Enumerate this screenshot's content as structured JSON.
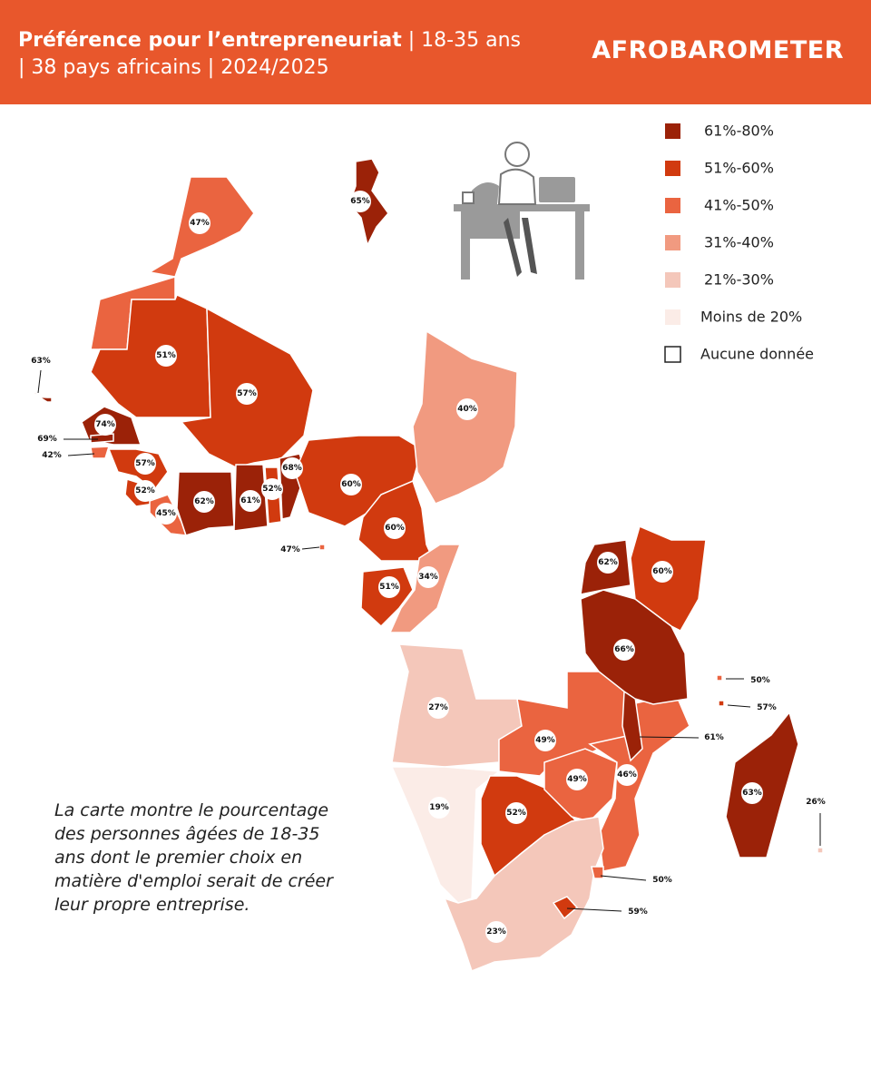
{
  "header": {
    "title_bold": "Préférence pour l’entrepreneuriat",
    "title_rest": " | 18-35 ans",
    "title_line_2": "| 38 pays africains | 2024/2025",
    "logo": "AFROBAROMETER",
    "color": "#e8572c"
  },
  "legend": {
    "items": [
      {
        "label": "61%-80%",
        "color": "#9b2208"
      },
      {
        "label": "51%-60%",
        "color": "#d13a0f"
      },
      {
        "label": "41%-50%",
        "color": "#ea6440"
      },
      {
        "label": "31%-40%",
        "color": "#f19a80"
      },
      {
        "label": "21%-30%",
        "color": "#f4c7ba"
      },
      {
        "label": "Moins de 20%",
        "color": "#fbece7"
      },
      {
        "label": "Aucune donnée",
        "color": "#ffffff"
      }
    ]
  },
  "map": {
    "regions": [
      {
        "label": "65%",
        "color": "#9b2208"
      },
      {
        "label": "47%",
        "color": "#ea6440"
      },
      {
        "label": "51%",
        "color": "#d13a0f"
      },
      {
        "label": "57%",
        "color": "#d13a0f"
      },
      {
        "label": "74%",
        "color": "#9b2208"
      },
      {
        "label": "69%",
        "color": "#9b2208"
      },
      {
        "label": "42%",
        "color": "#ea6440"
      },
      {
        "label": "63%",
        "color": "#9b2208"
      },
      {
        "label": "57%",
        "color": "#d13a0f"
      },
      {
        "label": "52%",
        "color": "#d13a0f"
      },
      {
        "label": "45%",
        "color": "#ea6440"
      },
      {
        "label": "62%",
        "color": "#9b2208"
      },
      {
        "label": "61%",
        "color": "#9b2208"
      },
      {
        "label": "52%",
        "color": "#d13a0f"
      },
      {
        "label": "68%",
        "color": "#9b2208"
      },
      {
        "label": "60%",
        "color": "#d13a0f"
      },
      {
        "label": "40%",
        "color": "#f19a80"
      },
      {
        "label": "60%",
        "color": "#d13a0f"
      },
      {
        "label": "47%",
        "color": "#ea6440"
      },
      {
        "label": "51%",
        "color": "#d13a0f"
      },
      {
        "label": "34%",
        "color": "#f19a80"
      },
      {
        "label": "27%",
        "color": "#f4c7ba"
      },
      {
        "label": "19%",
        "color": "#fbece7"
      },
      {
        "label": "52%",
        "color": "#d13a0f"
      },
      {
        "label": "49%",
        "color": "#ea6440"
      },
      {
        "label": "49%",
        "color": "#ea6440"
      },
      {
        "label": "46%",
        "color": "#ea6440"
      },
      {
        "label": "61%",
        "color": "#9b2208"
      },
      {
        "label": "66%",
        "color": "#9b2208"
      },
      {
        "label": "62%",
        "color": "#9b2208"
      },
      {
        "label": "60%",
        "color": "#d13a0f"
      },
      {
        "label": "63%",
        "color": "#9b2208"
      },
      {
        "label": "26%",
        "color": "#f4c7ba"
      },
      {
        "label": "50%",
        "color": "#ea6440"
      },
      {
        "label": "57%",
        "color": "#d13a0f"
      },
      {
        "label": "23%",
        "color": "#f4c7ba"
      },
      {
        "label": "50%",
        "color": "#ea6440"
      },
      {
        "label": "59%",
        "color": "#d13a0f"
      }
    ]
  },
  "note": "La carte montre le pourcentage des personnes âgées de 18-35 ans dont le premier choix en matière d'emploi serait de créer leur propre entreprise."
}
